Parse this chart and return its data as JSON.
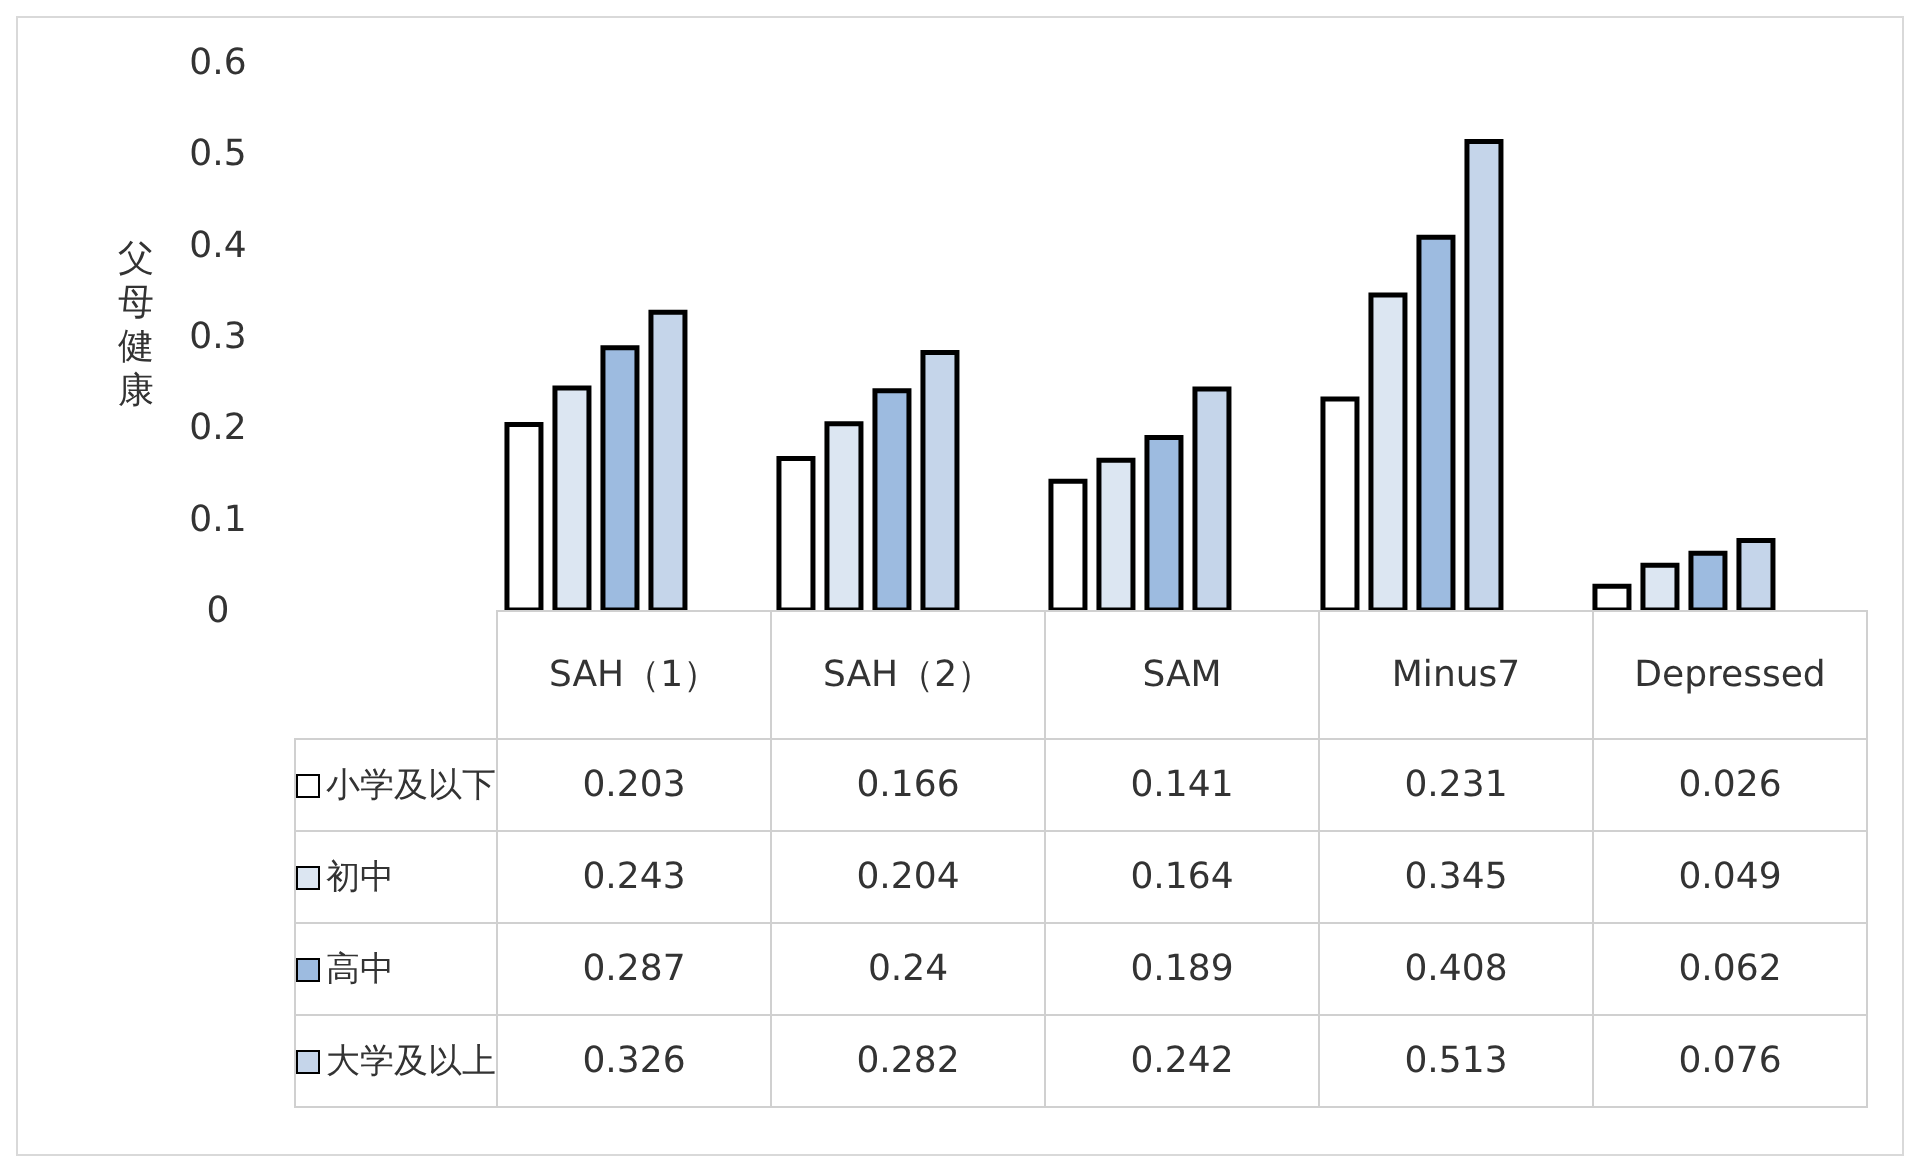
{
  "chart_data": {
    "type": "bar",
    "ylabel": "父母健康",
    "categories": [
      "SAH（1）",
      "SAH（2）",
      "SAM",
      "Minus7",
      "Depressed"
    ],
    "series": [
      {
        "name": "小学及以下",
        "color": "#ffffff",
        "values": [
          0.203,
          0.166,
          0.141,
          0.231,
          0.026
        ]
      },
      {
        "name": "初中",
        "color": "#dce6f2",
        "values": [
          0.243,
          0.204,
          0.164,
          0.345,
          0.049
        ]
      },
      {
        "name": "高中",
        "color": "#9dbbe0",
        "values": [
          0.287,
          0.24,
          0.189,
          0.408,
          0.062
        ]
      },
      {
        "name": "大学及以上",
        "color": "#c5d5ea",
        "values": [
          0.326,
          0.282,
          0.242,
          0.513,
          0.076
        ]
      }
    ],
    "ylim": [
      0,
      0.6
    ],
    "yticks": [
      0,
      0.1,
      0.2,
      0.3,
      0.4,
      0.5,
      0.6
    ],
    "data_labels": true,
    "legend": "bottom"
  }
}
